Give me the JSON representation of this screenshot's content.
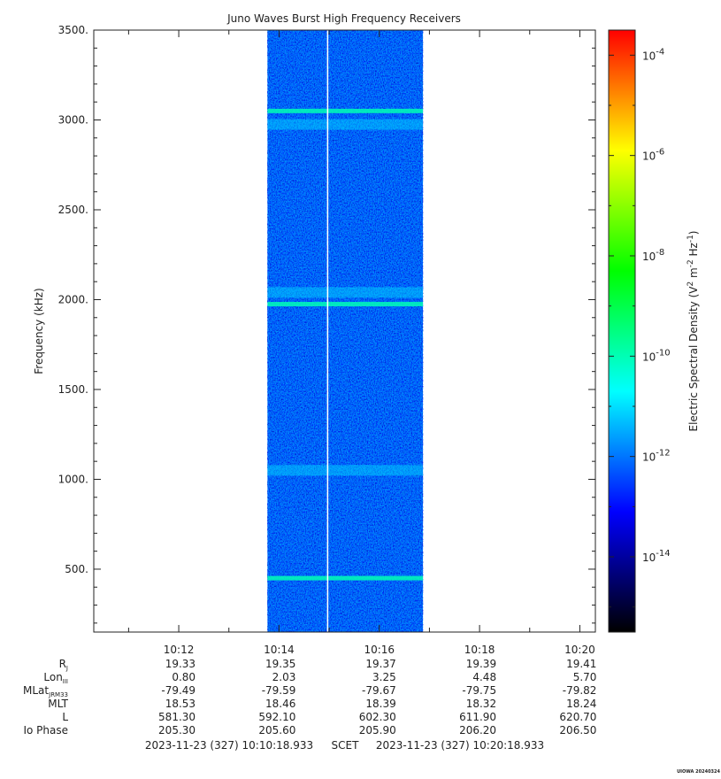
{
  "chart_data": {
    "type": "heatmap",
    "title": "Juno Waves Burst High Frequency Receivers",
    "ylabel": "Frequency (kHz)",
    "ylim": [
      150,
      3500
    ],
    "y_ticks": [
      {
        "value": 500,
        "label": "500."
      },
      {
        "value": 1000,
        "label": "1000."
      },
      {
        "value": 1500,
        "label": "1500."
      },
      {
        "value": 2000,
        "label": "2000."
      },
      {
        "value": 2500,
        "label": "2500."
      },
      {
        "value": 3000,
        "label": "3000."
      },
      {
        "value": 3500,
        "label": "3500."
      }
    ],
    "x_range_minutes": [
      10.305,
      20.31
    ],
    "x_ticks": [
      {
        "minute": 12,
        "label": "10:12"
      },
      {
        "minute": 14,
        "label": "10:14"
      },
      {
        "minute": 16,
        "label": "10:16"
      },
      {
        "minute": 18,
        "label": "10:18"
      },
      {
        "minute": 20,
        "label": "10:20"
      }
    ],
    "data_time_span_minutes": [
      13.77,
      16.87
    ],
    "data_gap_minute": 14.97,
    "background_level": "10^-12",
    "emission_bands": [
      {
        "frequency_khz": 3050,
        "level": "10^-10"
      },
      {
        "frequency_khz": 2975,
        "level": "10^-11"
      },
      {
        "frequency_khz": 1975,
        "level": "10^-10"
      },
      {
        "frequency_khz": 2040,
        "level": "10^-11"
      },
      {
        "frequency_khz": 1050,
        "level": "10^-11"
      },
      {
        "frequency_khz": 450,
        "level": "10^-10"
      }
    ],
    "colorbar": {
      "label_prefix": "Electric Spectral Density (V",
      "label_sup1": "2",
      "label_mid": " m",
      "label_sup2": "-2",
      "label_mid2": " Hz",
      "label_sup3": "-1",
      "label_suffix": ")",
      "log_range": [
        -15.5,
        -3.5
      ],
      "ticks": [
        {
          "exponent": -4,
          "base": "10",
          "power": "-4"
        },
        {
          "exponent": -6,
          "base": "10",
          "power": "-6"
        },
        {
          "exponent": -8,
          "base": "10",
          "power": "-8"
        },
        {
          "exponent": -10,
          "base": "10",
          "power": "-10"
        },
        {
          "exponent": -12,
          "base": "10",
          "power": "-12"
        },
        {
          "exponent": -14,
          "base": "10",
          "power": "-14"
        }
      ],
      "colors": [
        "#000000",
        "#00007f",
        "#0000ff",
        "#0080ff",
        "#00ffff",
        "#00ff80",
        "#00ff00",
        "#80ff00",
        "#ffff00",
        "#ff8000",
        "#ff0000"
      ]
    },
    "ephemeris": {
      "rows": [
        {
          "label": "R",
          "sub": "J",
          "values": [
            "19.33",
            "19.35",
            "19.37",
            "19.39",
            "19.41"
          ]
        },
        {
          "label": "Lon",
          "sub": "III",
          "values": [
            "0.80",
            "2.03",
            "3.25",
            "4.48",
            "5.70"
          ]
        },
        {
          "label": "MLat",
          "sub": "JRM33",
          "values": [
            "-79.49",
            "-79.59",
            "-79.67",
            "-79.75",
            "-79.82"
          ]
        },
        {
          "label": "MLT",
          "sub": "",
          "values": [
            "18.53",
            "18.46",
            "18.39",
            "18.32",
            "18.24"
          ]
        },
        {
          "label": "L",
          "sub": "",
          "values": [
            "581.30",
            "592.10",
            "602.30",
            "611.90",
            "620.70"
          ]
        },
        {
          "label": "Io Phase",
          "sub": "",
          "values": [
            "205.30",
            "205.60",
            "205.90",
            "206.20",
            "206.50"
          ]
        }
      ]
    },
    "scet_start": "2023-11-23 (327) 10:10:18.933",
    "scet_label": "SCET",
    "scet_end": "2023-11-23 (327) 10:20:18.933",
    "watermark": "UIOWA 20240324"
  }
}
